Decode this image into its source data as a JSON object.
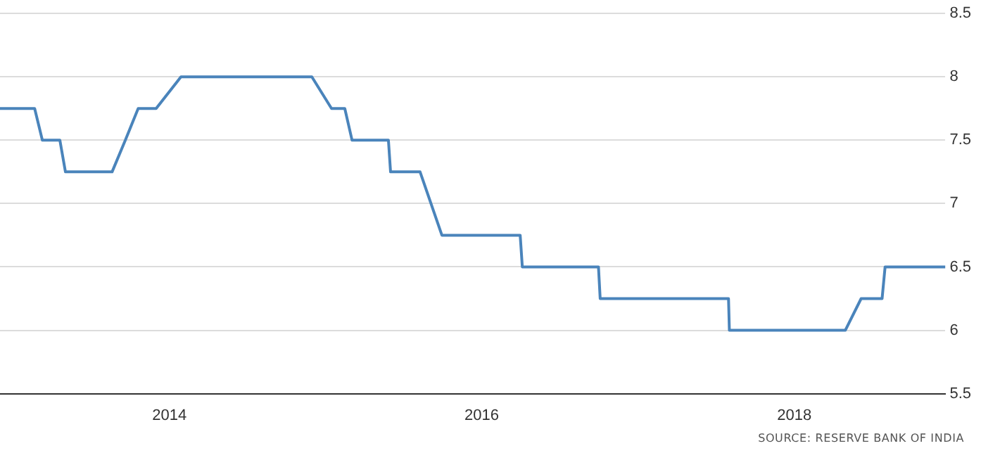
{
  "chart_data": {
    "type": "line",
    "x": [
      "2012-12-01",
      "2013-02-20",
      "2013-03-10",
      "2013-04-20",
      "2013-05-03",
      "2013-08-20",
      "2013-09-20",
      "2013-10-20",
      "2013-12-01",
      "2014-01-28",
      "2014-11-30",
      "2015-01-15",
      "2015-02-15",
      "2015-03-04",
      "2015-05-28",
      "2015-06-02",
      "2015-08-10",
      "2015-09-30",
      "2016-03-31",
      "2016-04-05",
      "2016-09-30",
      "2016-10-04",
      "2017-07-31",
      "2017-08-02",
      "2018-04-30",
      "2018-06-06",
      "2018-07-25",
      "2018-08-01",
      "2018-12-20"
    ],
    "series": [
      {
        "color": "#4a84bb",
        "values": [
          7.75,
          7.75,
          7.5,
          7.5,
          7.25,
          7.25,
          7.5,
          7.75,
          7.75,
          8,
          8,
          7.75,
          7.75,
          7.5,
          7.5,
          7.25,
          7.25,
          6.75,
          6.75,
          6.5,
          6.5,
          6.25,
          6.25,
          6,
          6,
          6.25,
          6.25,
          6.5,
          6.5
        ]
      }
    ],
    "xlim": [
      "2012-12-01",
      "2018-12-20"
    ],
    "xticks": [
      "2014",
      "2016",
      "2018"
    ],
    "ylim": [
      5.5,
      8.5
    ],
    "yticks": [
      5.5,
      6,
      6.5,
      7,
      7.5,
      8,
      8.5
    ],
    "grid": "y",
    "legend": false,
    "marker": "none",
    "line_style": "solid",
    "annotations": [
      "SOURCE: RESERVE BANK OF INDIA"
    ]
  }
}
